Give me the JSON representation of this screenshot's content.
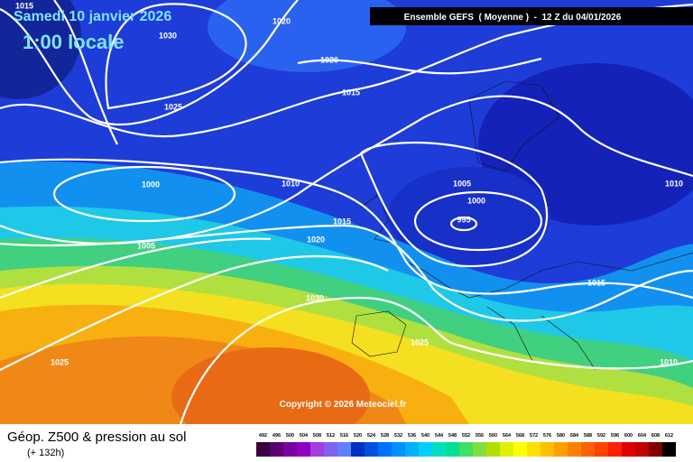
{
  "header": {
    "date": "Samedi 10 janvier 2026",
    "time": "1:00 locale",
    "banner": "Ensemble GEFS  ( Moyenne )  -  12 Z du 04/01/2026"
  },
  "map": {
    "copyright": "Copyright © 2026 Meteociel.fr",
    "isobar_labels": [
      1015,
      1020,
      1030,
      1020,
      1015,
      1025,
      1000,
      1010,
      1005,
      1000,
      995,
      1015,
      1010,
      1005,
      1020,
      1030,
      1015,
      1025,
      1025,
      1010
    ]
  },
  "footer": {
    "title": "Géop. Z500 & pression au sol",
    "subtitle": "(+ 132h)"
  },
  "scale": {
    "values": [
      492,
      496,
      500,
      504,
      508,
      512,
      516,
      520,
      524,
      528,
      532,
      536,
      540,
      544,
      548,
      552,
      556,
      560,
      564,
      568,
      572,
      576,
      580,
      584,
      588,
      592,
      596,
      600,
      604,
      608,
      612
    ],
    "colors": [
      "#3a0040",
      "#5a0070",
      "#7a00a0",
      "#9000c0",
      "#a040e0",
      "#8060f0",
      "#6080ff",
      "#0030c0",
      "#0050e0",
      "#0070ff",
      "#0090ff",
      "#00b0ff",
      "#00d0ff",
      "#00e0c0",
      "#00e090",
      "#40e060",
      "#80e040",
      "#b0e000",
      "#e0f000",
      "#ffff00",
      "#ffe000",
      "#ffc000",
      "#ffa000",
      "#ff8000",
      "#ff6000",
      "#ff4000",
      "#ff2000",
      "#e00000",
      "#c00000",
      "#800000",
      "#000000"
    ]
  }
}
